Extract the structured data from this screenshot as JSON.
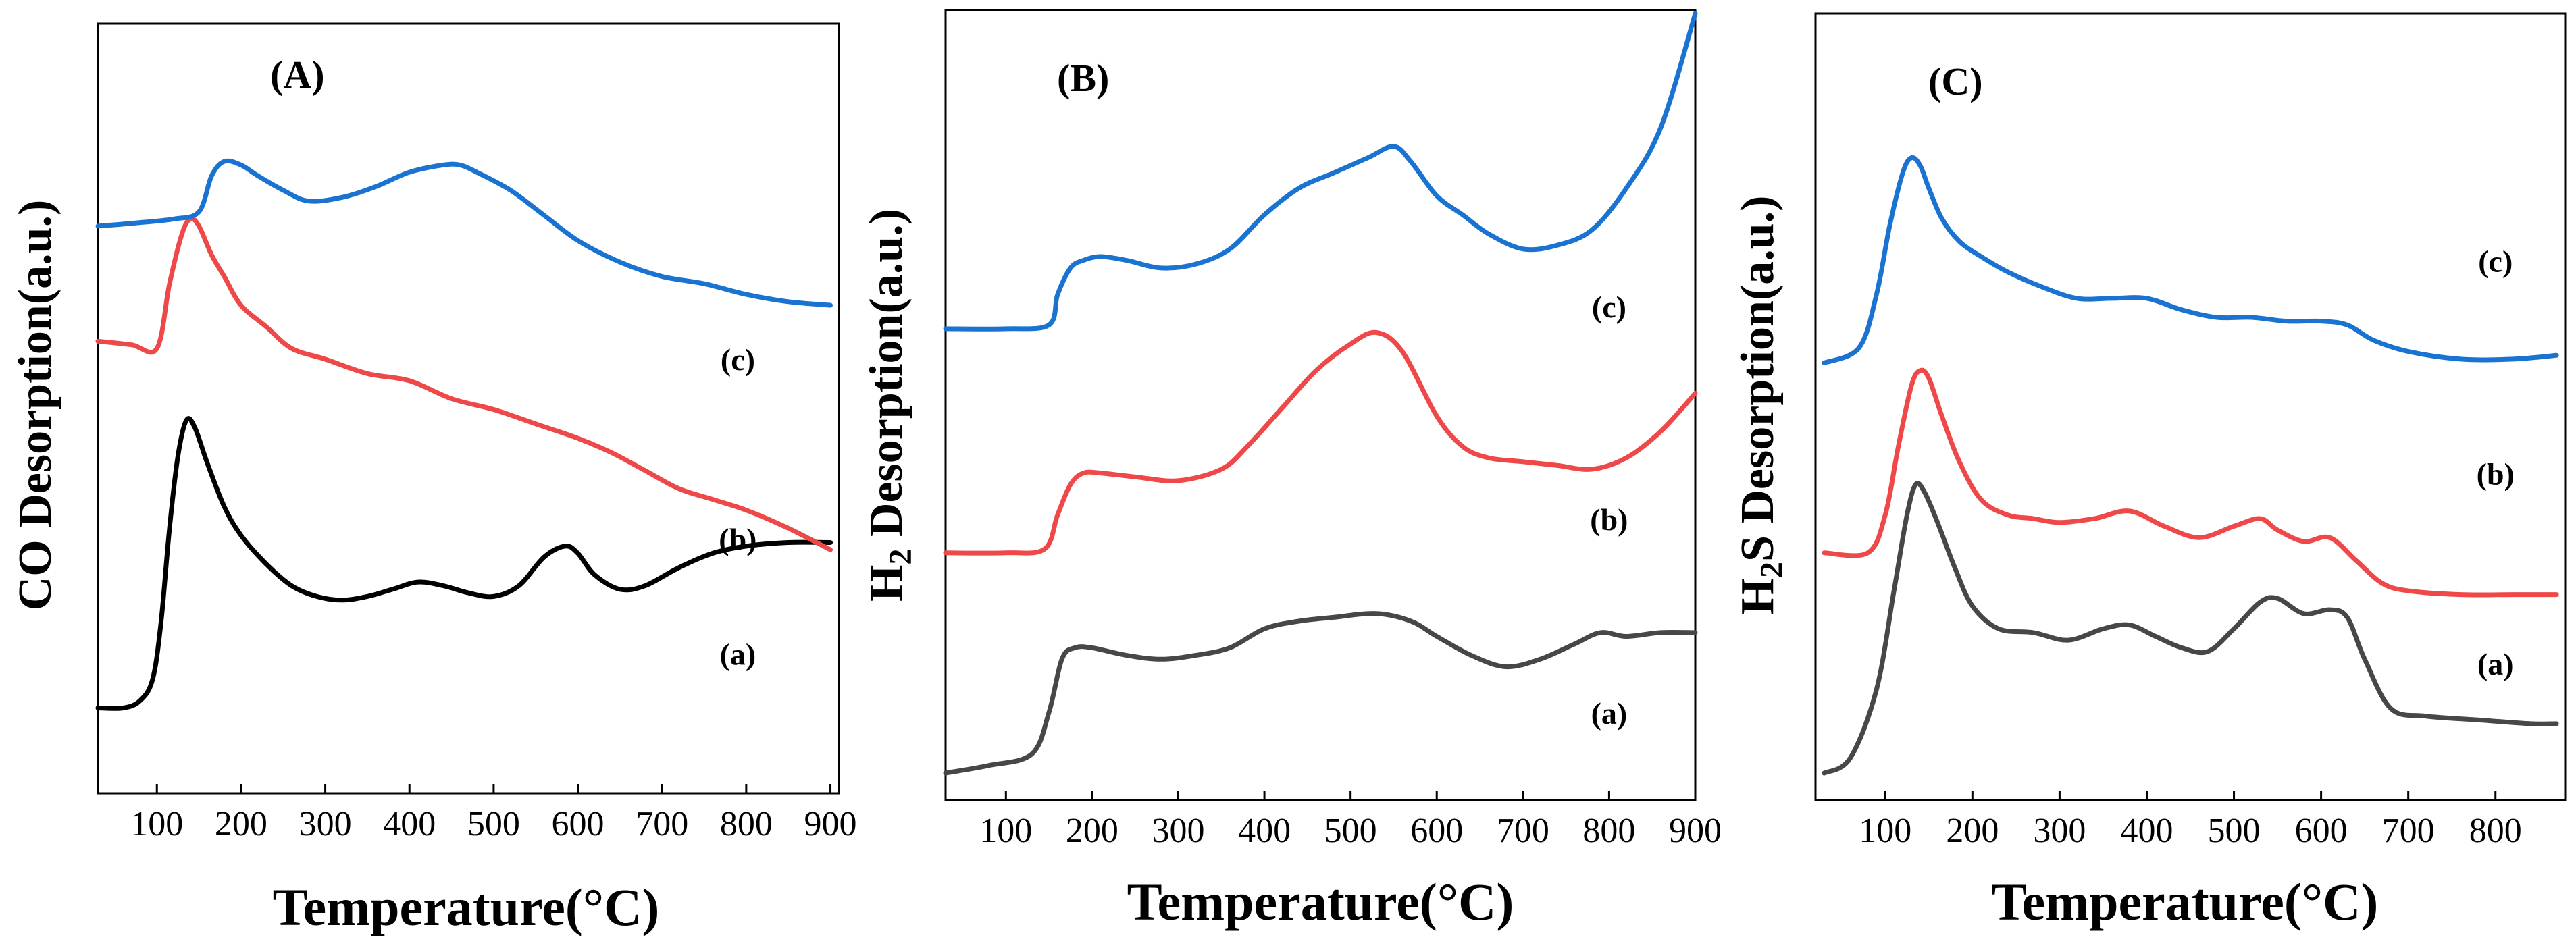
{
  "colors": {
    "a": "#000000",
    "b": "#ef4848",
    "c": "#1a73d1",
    "a_dark": "#474747"
  },
  "chart_data": [
    {
      "type": "line",
      "panel_label": "(A)",
      "xlabel": "Temperature(°C)",
      "ylabel": "CO Desorption(a.u.)",
      "xlim": [
        30,
        910
      ],
      "ylim": [
        0,
        1
      ],
      "x_ticks": [
        100,
        200,
        300,
        400,
        500,
        600,
        700,
        800,
        900
      ],
      "x_tick_labels": [
        "100",
        "200",
        "300",
        "400",
        "500",
        "600",
        "700",
        "800",
        "900"
      ],
      "annotations": [
        {
          "text": "(c)",
          "x": 790,
          "y": 0.57
        },
        {
          "text": "(b)",
          "x": 790,
          "y": 0.32
        },
        {
          "text": "(a)",
          "x": 790,
          "y": 0.16
        }
      ],
      "series": [
        {
          "name": "a",
          "color_key": "a",
          "x": [
            30,
            60,
            80,
            95,
            105,
            115,
            125,
            135,
            145,
            160,
            180,
            200,
            230,
            260,
            290,
            320,
            350,
            380,
            410,
            440,
            470,
            500,
            530,
            560,
            585,
            600,
            620,
            650,
            680,
            720,
            760,
            800,
            850,
            900
          ],
          "y": [
            0.1,
            0.1,
            0.11,
            0.14,
            0.22,
            0.35,
            0.45,
            0.5,
            0.49,
            0.44,
            0.38,
            0.34,
            0.3,
            0.27,
            0.255,
            0.25,
            0.255,
            0.265,
            0.275,
            0.27,
            0.26,
            0.255,
            0.27,
            0.31,
            0.325,
            0.315,
            0.285,
            0.265,
            0.27,
            0.295,
            0.315,
            0.325,
            0.33,
            0.33
          ]
        },
        {
          "name": "b",
          "color_key": "b",
          "x": [
            30,
            70,
            100,
            115,
            130,
            140,
            150,
            165,
            180,
            200,
            230,
            260,
            300,
            350,
            400,
            450,
            500,
            550,
            600,
            640,
            680,
            720,
            760,
            800,
            850,
            900
          ],
          "y": [
            0.61,
            0.605,
            0.6,
            0.69,
            0.76,
            0.78,
            0.77,
            0.73,
            0.7,
            0.66,
            0.63,
            0.6,
            0.585,
            0.565,
            0.555,
            0.53,
            0.515,
            0.495,
            0.475,
            0.455,
            0.43,
            0.405,
            0.39,
            0.375,
            0.35,
            0.32
          ]
        },
        {
          "name": "c",
          "color_key": "c",
          "x": [
            30,
            80,
            120,
            150,
            165,
            180,
            200,
            220,
            250,
            280,
            320,
            360,
            400,
            440,
            460,
            480,
            520,
            560,
            600,
            650,
            700,
            750,
            800,
            850,
            900
          ],
          "y": [
            0.77,
            0.775,
            0.78,
            0.79,
            0.84,
            0.86,
            0.855,
            0.84,
            0.82,
            0.805,
            0.81,
            0.825,
            0.845,
            0.855,
            0.855,
            0.845,
            0.82,
            0.785,
            0.75,
            0.72,
            0.7,
            0.69,
            0.675,
            0.665,
            0.66
          ]
        }
      ]
    },
    {
      "type": "line",
      "panel_label": "(B)",
      "xlabel": "Temperature(°C)",
      "ylabel": "H2 Desorption(a.u.)",
      "ylabel_main": "H",
      "ylabel_sub": "2",
      "ylabel_rest": " Desorption(a.u.)",
      "xlim": [
        30,
        900
      ],
      "ylim": [
        0,
        1
      ],
      "x_ticks": [
        100,
        200,
        300,
        400,
        500,
        600,
        700,
        800,
        900
      ],
      "x_tick_labels": [
        "100",
        "200",
        "300",
        "400",
        "500",
        "600",
        "700",
        "800",
        "900"
      ],
      "annotations": [
        {
          "text": "(c)",
          "x": 800,
          "y": 0.6
        },
        {
          "text": "(b)",
          "x": 800,
          "y": 0.32
        },
        {
          "text": "(a)",
          "x": 800,
          "y": 0.065
        }
      ],
      "series": [
        {
          "name": "a",
          "color_key": "a_dark",
          "x": [
            30,
            80,
            130,
            150,
            165,
            180,
            200,
            240,
            280,
            320,
            360,
            400,
            440,
            480,
            530,
            570,
            600,
            640,
            680,
            720,
            760,
            790,
            820,
            860,
            900
          ],
          "y": [
            0.0,
            0.01,
            0.025,
            0.08,
            0.15,
            0.165,
            0.165,
            0.155,
            0.15,
            0.155,
            0.165,
            0.19,
            0.2,
            0.205,
            0.21,
            0.2,
            0.18,
            0.155,
            0.14,
            0.15,
            0.17,
            0.185,
            0.18,
            0.185,
            0.185
          ]
        },
        {
          "name": "b",
          "color_key": "b",
          "x": [
            30,
            100,
            145,
            160,
            175,
            190,
            210,
            250,
            300,
            350,
            380,
            420,
            460,
            500,
            530,
            560,
            600,
            630,
            660,
            700,
            740,
            780,
            820,
            860,
            900
          ],
          "y": [
            0.29,
            0.29,
            0.295,
            0.34,
            0.38,
            0.395,
            0.395,
            0.39,
            0.385,
            0.4,
            0.43,
            0.48,
            0.53,
            0.565,
            0.58,
            0.555,
            0.47,
            0.43,
            0.415,
            0.41,
            0.405,
            0.4,
            0.415,
            0.45,
            0.5
          ]
        },
        {
          "name": "c",
          "color_key": "c",
          "x": [
            30,
            100,
            150,
            160,
            175,
            190,
            210,
            240,
            280,
            320,
            360,
            400,
            440,
            480,
            520,
            550,
            570,
            600,
            630,
            660,
            700,
            740,
            780,
            820,
            860,
            900
          ],
          "y": [
            0.585,
            0.585,
            0.59,
            0.63,
            0.665,
            0.675,
            0.68,
            0.675,
            0.665,
            0.67,
            0.69,
            0.735,
            0.77,
            0.79,
            0.81,
            0.825,
            0.805,
            0.76,
            0.735,
            0.71,
            0.69,
            0.695,
            0.715,
            0.77,
            0.85,
            1.0
          ]
        }
      ]
    },
    {
      "type": "line",
      "panel_label": "(C)",
      "xlabel": "Temperature(°C)",
      "ylabel": "H2S Desorption(a.u.)",
      "ylabel_main": "H",
      "ylabel_sub": "2",
      "ylabel_rest": "S Desorption(a.u.)",
      "xlim": [
        20,
        880
      ],
      "ylim": [
        0,
        1
      ],
      "x_ticks": [
        100,
        200,
        300,
        400,
        500,
        600,
        700,
        800
      ],
      "x_tick_labels": [
        "100",
        "200",
        "300",
        "400",
        "500",
        "600",
        "700",
        "800"
      ],
      "annotations": [
        {
          "text": "(c)",
          "x": 800,
          "y": 0.66
        },
        {
          "text": "(b)",
          "x": 800,
          "y": 0.38
        },
        {
          "text": "(a)",
          "x": 800,
          "y": 0.13
        }
      ],
      "series": [
        {
          "name": "a",
          "color_key": "a_dark",
          "x": [
            30,
            60,
            90,
            110,
            125,
            135,
            145,
            160,
            180,
            200,
            230,
            270,
            310,
            350,
            380,
            410,
            440,
            470,
            500,
            530,
            550,
            580,
            610,
            630,
            650,
            680,
            720,
            780,
            840,
            870
          ],
          "y": [
            0.0,
            0.02,
            0.11,
            0.24,
            0.34,
            0.38,
            0.37,
            0.33,
            0.27,
            0.22,
            0.19,
            0.185,
            0.175,
            0.19,
            0.195,
            0.18,
            0.165,
            0.16,
            0.19,
            0.225,
            0.23,
            0.21,
            0.215,
            0.205,
            0.15,
            0.085,
            0.075,
            0.07,
            0.065,
            0.065
          ]
        },
        {
          "name": "b",
          "color_key": "b",
          "x": [
            30,
            80,
            100,
            115,
            130,
            140,
            150,
            165,
            185,
            210,
            240,
            270,
            300,
            340,
            380,
            420,
            460,
            500,
            530,
            550,
            580,
            610,
            640,
            670,
            700,
            760,
            820,
            870
          ],
          "y": [
            0.29,
            0.29,
            0.34,
            0.43,
            0.51,
            0.53,
            0.52,
            0.47,
            0.41,
            0.36,
            0.34,
            0.335,
            0.33,
            0.335,
            0.345,
            0.325,
            0.31,
            0.325,
            0.335,
            0.32,
            0.305,
            0.31,
            0.28,
            0.25,
            0.24,
            0.235,
            0.235,
            0.235
          ]
        },
        {
          "name": "c",
          "color_key": "c",
          "x": [
            30,
            70,
            90,
            105,
            120,
            130,
            140,
            150,
            165,
            185,
            210,
            240,
            280,
            320,
            360,
            400,
            440,
            480,
            520,
            560,
            600,
            630,
            660,
            700,
            760,
            820,
            870
          ],
          "y": [
            0.54,
            0.56,
            0.63,
            0.72,
            0.79,
            0.81,
            0.8,
            0.77,
            0.73,
            0.7,
            0.68,
            0.66,
            0.64,
            0.625,
            0.625,
            0.625,
            0.61,
            0.6,
            0.6,
            0.595,
            0.595,
            0.59,
            0.57,
            0.555,
            0.545,
            0.545,
            0.55
          ]
        }
      ]
    }
  ]
}
